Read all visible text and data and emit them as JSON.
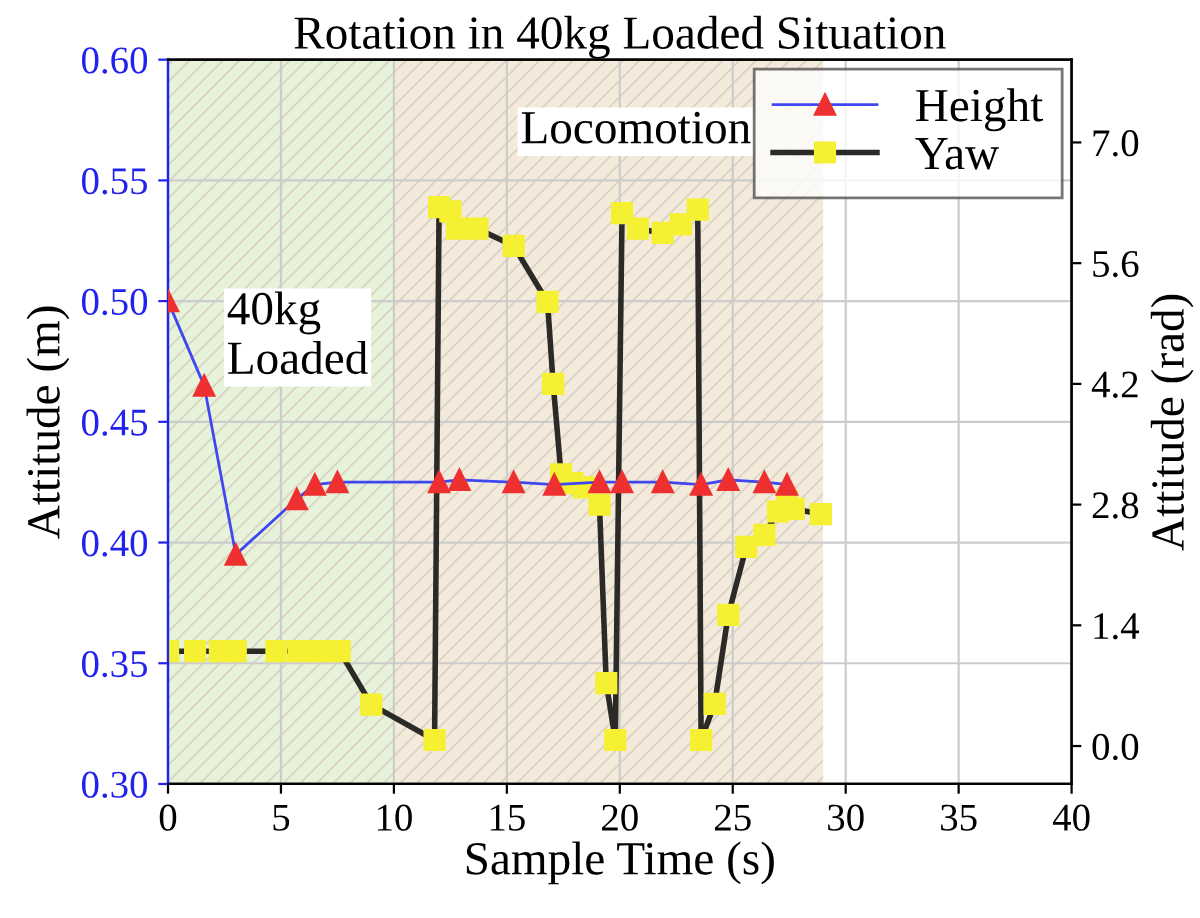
{
  "chart_data": {
    "type": "line",
    "title": "Rotation in 40kg Loaded Situation",
    "xlabel": "Sample Time (s)",
    "ylabel": "Attitude (m)",
    "y2label": "Attitude (rad)",
    "annotations": [
      "40kg\nLoaded",
      "Locomotion"
    ],
    "xlim": [
      0,
      40
    ],
    "xticks": [
      0,
      5,
      10,
      15,
      20,
      25,
      30,
      35,
      40
    ],
    "ylim": [
      0.3,
      0.6
    ],
    "yticks": [
      {
        "value": 0.3,
        "label": "0.30"
      },
      {
        "value": 0.35,
        "label": "0.35"
      },
      {
        "value": 0.4,
        "label": "0.40"
      },
      {
        "value": 0.45,
        "label": "0.45"
      },
      {
        "value": 0.5,
        "label": "0.50"
      },
      {
        "value": 0.55,
        "label": "0.55"
      },
      {
        "value": 0.6,
        "label": "0.60"
      }
    ],
    "y2lim": [
      -0.44,
      7.96
    ],
    "y2ticks": [
      {
        "value": 0,
        "label": "0.0"
      },
      {
        "value": 1.4,
        "label": "1.4"
      },
      {
        "value": 2.8,
        "label": "2.8"
      },
      {
        "value": 4.2,
        "label": "4.2"
      },
      {
        "value": 5.6,
        "label": "5.6"
      },
      {
        "value": 7.0,
        "label": "7.0"
      }
    ],
    "grid": true,
    "legend": "top right",
    "line_style": "solid",
    "bands": [
      {
        "axis": "x",
        "from": 0,
        "to": 10,
        "color": "#e6f2d9"
      },
      {
        "axis": "x",
        "from": 10,
        "to": 29,
        "color": "#f3eadb"
      }
    ],
    "series": [
      {
        "name": "Height",
        "color": "#3f48f0",
        "marker": "triangle",
        "axis": "y",
        "x": [
          0,
          1.6,
          3.0,
          5.7,
          6.5,
          7.5,
          12.0,
          12.9,
          15.3,
          17.1,
          19.1,
          20.1,
          21.9,
          23.6,
          24.8,
          26.4,
          27.4
        ],
        "values": [
          0.5,
          0.465,
          0.395,
          0.418,
          0.424,
          0.425,
          0.425,
          0.426,
          0.425,
          0.424,
          0.425,
          0.425,
          0.425,
          0.424,
          0.426,
          0.425,
          0.424
        ]
      },
      {
        "name": "Yaw",
        "color": "#2b2a26",
        "marker": "square",
        "axis": "y2",
        "x": [
          0,
          1.2,
          2.3,
          3.0,
          4.8,
          5.8,
          6.7,
          7.6,
          9.0,
          11.8,
          12.0,
          12.5,
          12.8,
          13.7,
          15.3,
          16.8,
          17.05,
          17.4,
          17.9,
          18.4,
          19.1,
          19.4,
          19.8,
          20.1,
          20.8,
          21.9,
          22.7,
          23.45,
          23.6,
          24.2,
          24.8,
          25.6,
          26.4,
          27.0,
          27.4,
          27.7,
          28.9
        ],
        "values": [
          1.1,
          1.1,
          1.1,
          1.1,
          1.1,
          1.1,
          1.1,
          1.1,
          0.48,
          0.07,
          6.25,
          6.2,
          6.0,
          6.0,
          5.8,
          5.15,
          4.2,
          3.15,
          3.05,
          3.0,
          2.8,
          0.73,
          0.07,
          6.18,
          6.0,
          5.95,
          6.05,
          6.22,
          0.07,
          0.49,
          1.52,
          2.31,
          2.45,
          2.72,
          2.84,
          2.75,
          2.69
        ]
      }
    ]
  }
}
